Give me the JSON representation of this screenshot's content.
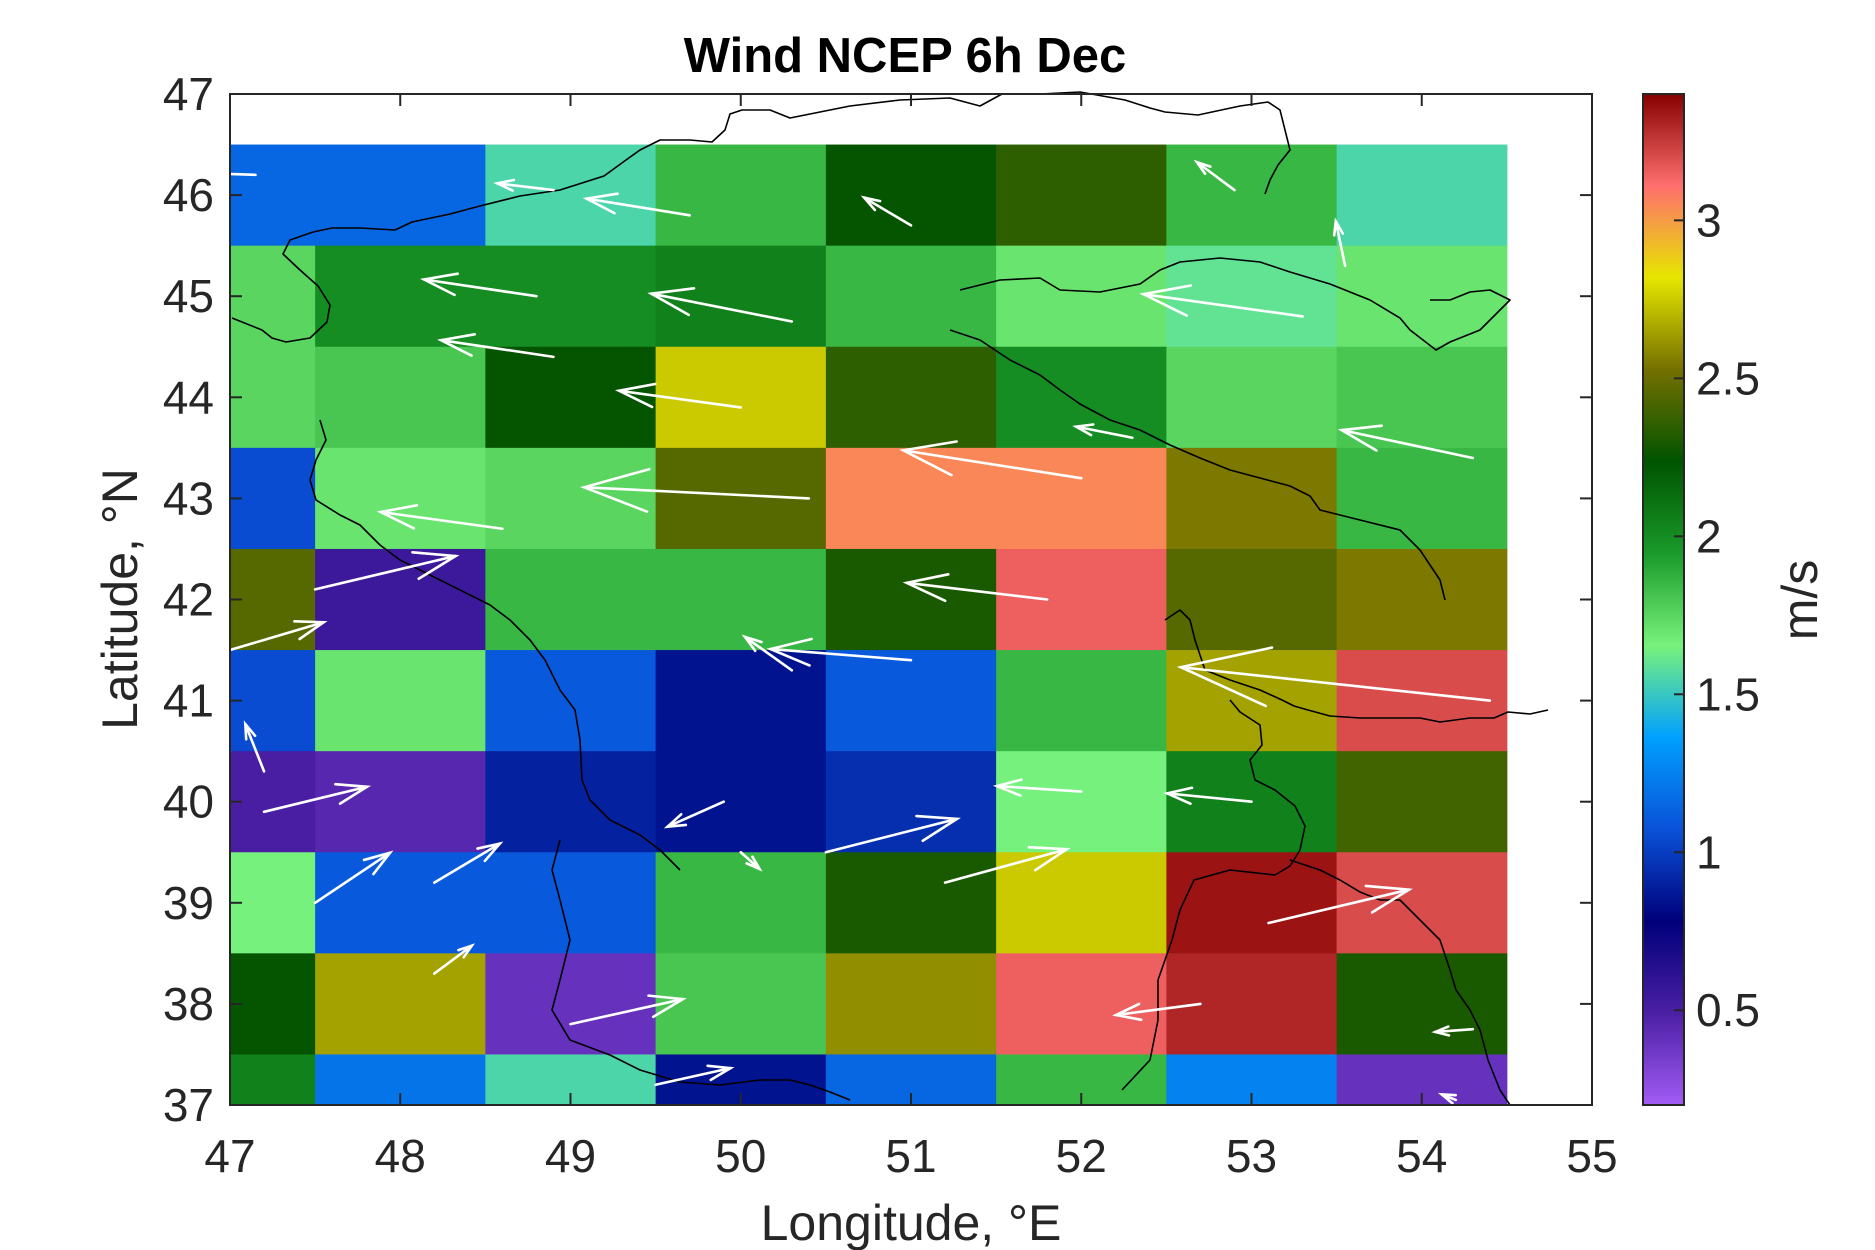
{
  "chart_data": {
    "type": "heatmap",
    "title": "Wind NCEP 6h Dec",
    "xlabel": "Longitude, °E",
    "ylabel": "Latitude, °N",
    "colorbar_label": "m/s",
    "xlim": [
      47,
      55
    ],
    "ylim": [
      37,
      47
    ],
    "xticks": [
      "47",
      "48",
      "49",
      "50",
      "51",
      "52",
      "53",
      "54",
      "55"
    ],
    "yticks": [
      "37",
      "38",
      "39",
      "40",
      "41",
      "42",
      "43",
      "44",
      "45",
      "46",
      "47"
    ],
    "colorbar_ticks": [
      "0.5",
      "1",
      "1.5",
      "2",
      "2.5",
      "3"
    ],
    "colorbar_range": [
      0.2,
      3.4
    ],
    "grid": false,
    "cell_edges_lon": [
      47,
      47.5,
      48.5,
      49.5,
      50.5,
      51.5,
      52.5,
      53.5,
      54.5
    ],
    "cell_edges_lat": [
      46.5,
      45.5,
      44.5,
      43.5,
      42.5,
      41.5,
      40.5,
      39.5,
      38.5,
      37.5,
      37
    ],
    "speed_grid": [
      [
        1.15,
        1.15,
        1.55,
        1.85,
        2.25,
        2.35,
        1.85,
        1.55
      ],
      [
        1.75,
        2.0,
        2.0,
        2.05,
        1.85,
        1.7,
        1.6,
        1.7
      ],
      [
        1.75,
        1.8,
        2.25,
        2.75,
        2.35,
        2.0,
        1.75,
        1.8
      ],
      [
        1.05,
        1.7,
        1.75,
        2.45,
        3.05,
        3.05,
        2.55,
        1.85
      ],
      [
        2.45,
        0.55,
        1.85,
        1.85,
        2.3,
        3.15,
        2.45,
        2.55
      ],
      [
        1.05,
        1.7,
        1.1,
        0.85,
        1.1,
        1.85,
        2.65,
        3.2
      ],
      [
        0.5,
        0.45,
        0.9,
        0.85,
        0.95,
        1.65,
        2.05,
        2.4
      ],
      [
        1.65,
        1.1,
        1.1,
        1.85,
        2.3,
        2.75,
        3.35,
        3.2
      ],
      [
        2.25,
        2.65,
        0.4,
        1.8,
        2.6,
        3.15,
        3.3,
        2.3
      ],
      [
        2.05,
        1.2,
        1.55,
        0.85,
        1.15,
        1.85,
        1.25,
        0.4
      ]
    ],
    "wind_vectors": [
      {
        "lon": 47.15,
        "lat": 46.2,
        "u": -0.9,
        "v": 0.05
      },
      {
        "lon": 48.9,
        "lat": 46.05,
        "u": -0.6,
        "v": 0.12
      },
      {
        "lon": 49.7,
        "lat": 45.8,
        "u": -1.1,
        "v": 0.3
      },
      {
        "lon": 51.0,
        "lat": 45.7,
        "u": -0.5,
        "v": 0.5
      },
      {
        "lon": 52.9,
        "lat": 46.05,
        "u": -0.4,
        "v": 0.5
      },
      {
        "lon": 53.55,
        "lat": 45.3,
        "u": -0.1,
        "v": 0.8
      },
      {
        "lon": 48.8,
        "lat": 45.0,
        "u": -1.2,
        "v": 0.3
      },
      {
        "lon": 50.3,
        "lat": 44.75,
        "u": -1.5,
        "v": 0.5
      },
      {
        "lon": 53.3,
        "lat": 44.8,
        "u": -1.7,
        "v": 0.4
      },
      {
        "lon": 48.9,
        "lat": 44.4,
        "u": -1.2,
        "v": 0.3
      },
      {
        "lon": 50.0,
        "lat": 43.9,
        "u": -1.3,
        "v": 0.3
      },
      {
        "lon": 52.3,
        "lat": 43.6,
        "u": -0.6,
        "v": 0.2
      },
      {
        "lon": 54.3,
        "lat": 43.4,
        "u": -1.4,
        "v": 0.5
      },
      {
        "lon": 50.4,
        "lat": 43.0,
        "u": -2.4,
        "v": 0.2
      },
      {
        "lon": 52.0,
        "lat": 43.2,
        "u": -1.9,
        "v": 0.5
      },
      {
        "lon": 48.6,
        "lat": 42.7,
        "u": -1.3,
        "v": 0.3
      },
      {
        "lon": 47.0,
        "lat": 41.5,
        "u": 1.0,
        "v": 0.5
      },
      {
        "lon": 47.5,
        "lat": 42.1,
        "u": 1.5,
        "v": 0.6
      },
      {
        "lon": 50.3,
        "lat": 41.3,
        "u": -0.5,
        "v": 0.6
      },
      {
        "lon": 54.4,
        "lat": 41.0,
        "u": -3.3,
        "v": 0.6
      },
      {
        "lon": 51.0,
        "lat": 41.4,
        "u": -1.5,
        "v": 0.2
      },
      {
        "lon": 51.8,
        "lat": 42.0,
        "u": -1.5,
        "v": 0.3
      },
      {
        "lon": 47.2,
        "lat": 40.3,
        "u": -0.2,
        "v": 0.85
      },
      {
        "lon": 47.2,
        "lat": 39.9,
        "u": 1.1,
        "v": 0.45
      },
      {
        "lon": 47.5,
        "lat": 39.0,
        "u": 0.8,
        "v": 0.9
      },
      {
        "lon": 48.2,
        "lat": 39.2,
        "u": 0.7,
        "v": 0.7
      },
      {
        "lon": 48.2,
        "lat": 38.3,
        "u": 0.4,
        "v": 0.5
      },
      {
        "lon": 49.0,
        "lat": 37.8,
        "u": 1.2,
        "v": 0.45
      },
      {
        "lon": 49.9,
        "lat": 40.0,
        "u": -0.6,
        "v": -0.45
      },
      {
        "lon": 50.0,
        "lat": 39.5,
        "u": 0.2,
        "v": -0.3
      },
      {
        "lon": 50.5,
        "lat": 39.5,
        "u": 1.4,
        "v": 0.6
      },
      {
        "lon": 51.2,
        "lat": 39.2,
        "u": 1.3,
        "v": 0.6
      },
      {
        "lon": 52.0,
        "lat": 40.1,
        "u": -0.9,
        "v": 0.1
      },
      {
        "lon": 53.0,
        "lat": 40.0,
        "u": -0.9,
        "v": 0.15
      },
      {
        "lon": 53.1,
        "lat": 38.8,
        "u": 1.5,
        "v": 0.6
      },
      {
        "lon": 52.7,
        "lat": 38.0,
        "u": -0.9,
        "v": -0.2
      },
      {
        "lon": 54.3,
        "lat": 37.75,
        "u": -0.4,
        "v": -0.05
      },
      {
        "lon": 49.5,
        "lat": 37.2,
        "u": 0.8,
        "v": 0.3
      },
      {
        "lon": 54.2,
        "lat": 37.05,
        "u": -0.15,
        "v": 0.1
      }
    ]
  },
  "colors": {
    "vectors": "#ffffff",
    "coastline": "#000000",
    "colormap_stops": [
      "#a25cf5",
      "#4b1fa4",
      "#00007a",
      "#0a52d8",
      "#00a0ff",
      "#78f27b",
      "#1a9a2a",
      "#005400",
      "#747000",
      "#e6e600",
      "#ff6f6f",
      "#870000"
    ]
  }
}
